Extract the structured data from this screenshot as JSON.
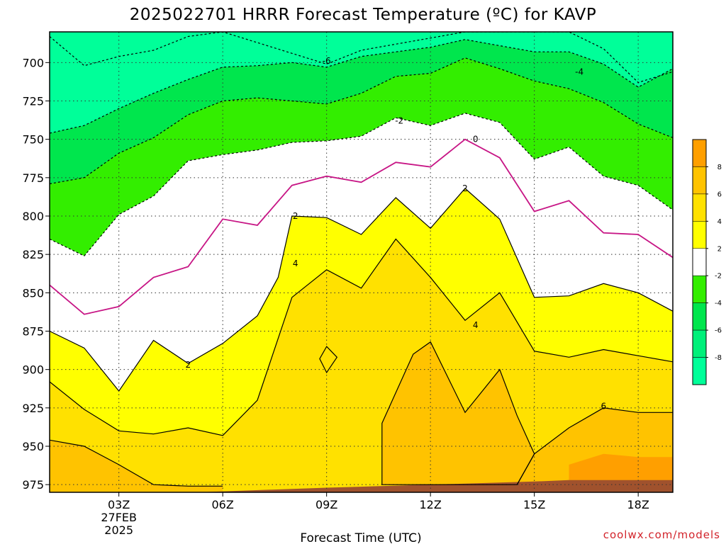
{
  "chart_data": {
    "type": "heatmap",
    "title": "2025022701 HRRR Forecast Temperature (ºC) for KAVP",
    "xlabel": "Forecast Time (UTC)",
    "ylabel": "",
    "x_ticks": [
      {
        "hour": 3,
        "label": "03Z",
        "sub": [
          "27FEB",
          "2025"
        ]
      },
      {
        "hour": 6,
        "label": "06Z"
      },
      {
        "hour": 9,
        "label": "09Z"
      },
      {
        "hour": 12,
        "label": "12Z"
      },
      {
        "hour": 15,
        "label": "15Z"
      },
      {
        "hour": 18,
        "label": "18Z"
      }
    ],
    "xlim": [
      1,
      19
    ],
    "y_ticks": [
      700,
      725,
      750,
      775,
      800,
      825,
      850,
      875,
      900,
      925,
      950,
      975
    ],
    "ylim": [
      980,
      680
    ],
    "grid": true,
    "colorbar": {
      "levels": [
        -10,
        -8,
        -6,
        -4,
        -2,
        2,
        4,
        6,
        8,
        10
      ],
      "labels": [
        "8",
        "6",
        "4",
        "2",
        "-2",
        "-4",
        "-6",
        "-8"
      ],
      "colors": [
        "#00ff99",
        "#00f07a",
        "#00e64d",
        "#33ee00",
        "#ffffff",
        "#ffff00",
        "#ffe100",
        "#ffc300",
        "#ff9f00"
      ]
    },
    "band_colors": {
      "lt_-6": "#00ff99",
      "-6_-4": "#00e64d",
      "-4_-2": "#33ee00",
      "-2_0": "#ffffff",
      "0_2": "#ffffff",
      "2_4": "#ffff00",
      "4_6": "#ffe100",
      "6_8": "#ffc300",
      "gt_8": "#ff9f00",
      "ground": "#a0522d"
    },
    "isotherms": [
      {
        "value": -6,
        "label": "-6",
        "style": "dashed",
        "color": "#000000",
        "points": [
          [
            1,
            683
          ],
          [
            2,
            702
          ],
          [
            3,
            696
          ],
          [
            4,
            692
          ],
          [
            5,
            683
          ],
          [
            6,
            680
          ],
          [
            9,
            701
          ],
          [
            10,
            692
          ],
          [
            11,
            688
          ],
          [
            12,
            684
          ],
          [
            13,
            680
          ],
          [
            16,
            680
          ],
          [
            17,
            691
          ],
          [
            18,
            713
          ],
          [
            19,
            706
          ]
        ]
      },
      {
        "value": -4,
        "label": "-4",
        "style": "dashed",
        "color": "#000000",
        "points": [
          [
            1,
            746
          ],
          [
            2,
            741
          ],
          [
            3,
            730
          ],
          [
            4,
            720
          ],
          [
            5,
            711
          ],
          [
            6,
            703
          ],
          [
            7,
            702
          ],
          [
            8,
            700
          ],
          [
            9,
            703
          ],
          [
            10,
            696
          ],
          [
            11,
            693
          ],
          [
            12,
            690
          ],
          [
            13,
            685
          ],
          [
            14,
            689
          ],
          [
            15,
            693
          ],
          [
            16,
            693
          ],
          [
            17,
            701
          ],
          [
            18,
            716
          ],
          [
            19,
            704
          ]
        ]
      },
      {
        "value": -2,
        "label": "-2",
        "style": "dashed",
        "color": "#000000",
        "points": [
          [
            1,
            779
          ],
          [
            2,
            775
          ],
          [
            3,
            759
          ],
          [
            4,
            749
          ],
          [
            5,
            734
          ],
          [
            6,
            725
          ],
          [
            7,
            723
          ],
          [
            8,
            725
          ],
          [
            9,
            727
          ],
          [
            10,
            720
          ],
          [
            11,
            709
          ],
          [
            12,
            707
          ],
          [
            13,
            697
          ],
          [
            14,
            704
          ],
          [
            15,
            712
          ],
          [
            16,
            717
          ],
          [
            17,
            726
          ],
          [
            18,
            740
          ],
          [
            19,
            749
          ]
        ]
      },
      {
        "value": -2,
        "label": "",
        "style": "dashed",
        "color": "#000000",
        "points": [
          [
            1,
            815
          ],
          [
            2,
            826
          ],
          [
            3,
            799
          ],
          [
            4,
            787
          ],
          [
            5,
            764
          ],
          [
            6,
            760
          ],
          [
            7,
            757
          ],
          [
            8,
            752
          ],
          [
            9,
            751
          ],
          [
            10,
            748
          ],
          [
            11,
            736
          ],
          [
            12,
            741
          ],
          [
            13,
            733
          ],
          [
            14,
            739
          ],
          [
            15,
            763
          ],
          [
            16,
            755
          ],
          [
            17,
            774
          ],
          [
            18,
            780
          ],
          [
            19,
            796
          ]
        ]
      },
      {
        "value": 0,
        "label": "0",
        "style": "solid",
        "color": "#c71585",
        "points": [
          [
            1,
            845
          ],
          [
            2,
            864
          ],
          [
            3,
            859
          ],
          [
            4,
            840
          ],
          [
            5,
            833
          ],
          [
            6,
            802
          ],
          [
            7,
            806
          ],
          [
            8,
            780
          ],
          [
            9,
            774
          ],
          [
            10,
            778
          ],
          [
            11,
            765
          ],
          [
            12,
            768
          ],
          [
            13,
            750
          ],
          [
            14,
            762
          ],
          [
            15,
            797
          ],
          [
            16,
            790
          ],
          [
            17,
            811
          ],
          [
            18,
            812
          ],
          [
            19,
            827
          ]
        ]
      },
      {
        "value": 2,
        "label": "2",
        "style": "solid",
        "color": "#000000",
        "points": [
          [
            1,
            875
          ],
          [
            2,
            886
          ],
          [
            3,
            914
          ],
          [
            4,
            881
          ],
          [
            5,
            896
          ],
          [
            6,
            883
          ],
          [
            7,
            865
          ],
          [
            7.6,
            840
          ],
          [
            8,
            800
          ],
          [
            9,
            801
          ],
          [
            10,
            812
          ],
          [
            11,
            788
          ],
          [
            12,
            808
          ],
          [
            13,
            782
          ],
          [
            14,
            802
          ],
          [
            15,
            853
          ],
          [
            16,
            852
          ],
          [
            17,
            844
          ],
          [
            18,
            850
          ],
          [
            19,
            862
          ]
        ]
      },
      {
        "value": 4,
        "label": "4",
        "style": "solid",
        "color": "#000000",
        "points": [
          [
            1,
            908
          ],
          [
            2,
            926
          ],
          [
            3,
            940
          ],
          [
            4,
            942
          ],
          [
            5,
            938
          ],
          [
            6,
            943
          ],
          [
            7,
            920
          ],
          [
            8,
            853
          ],
          [
            9,
            835
          ],
          [
            10,
            847
          ],
          [
            11,
            815
          ],
          [
            12,
            840
          ],
          [
            13,
            868
          ],
          [
            14,
            850
          ],
          [
            15,
            888
          ],
          [
            16,
            892
          ],
          [
            17,
            887
          ],
          [
            18,
            891
          ],
          [
            19,
            895
          ]
        ]
      },
      {
        "value": 6,
        "label": "6",
        "style": "solid",
        "color": "#000000",
        "points": [
          [
            1,
            946
          ],
          [
            2,
            950
          ],
          [
            3,
            962
          ],
          [
            4,
            975
          ],
          [
            5,
            976
          ],
          [
            6,
            976
          ]
        ]
      },
      {
        "value": 6,
        "label": "6",
        "style": "solid",
        "color": "#000000",
        "points": [
          [
            14.5,
            975
          ],
          [
            15,
            955
          ],
          [
            16,
            938
          ],
          [
            17,
            925
          ],
          [
            18,
            928
          ],
          [
            19,
            928
          ]
        ]
      }
    ],
    "warm_pocket_6": {
      "value": 6,
      "label": "6",
      "points": [
        [
          10.6,
          975
        ],
        [
          10.6,
          935
        ],
        [
          11,
          915
        ],
        [
          11.5,
          890
        ],
        [
          12,
          882
        ],
        [
          12.5,
          905
        ],
        [
          13,
          928
        ],
        [
          14,
          900
        ],
        [
          14.5,
          930
        ],
        [
          15,
          955
        ],
        [
          14.5,
          975
        ]
      ]
    },
    "pocket_9z": {
      "value": 4,
      "points": [
        [
          9,
          885
        ],
        [
          9.3,
          892
        ],
        [
          9,
          902
        ],
        [
          8.8,
          893
        ]
      ]
    },
    "ground_surface": [
      [
        1,
        981
      ],
      [
        4,
        981
      ],
      [
        9,
        977
      ],
      [
        15,
        973
      ],
      [
        16,
        972
      ],
      [
        19,
        972
      ]
    ],
    "credit": "coolwx.com/models"
  }
}
